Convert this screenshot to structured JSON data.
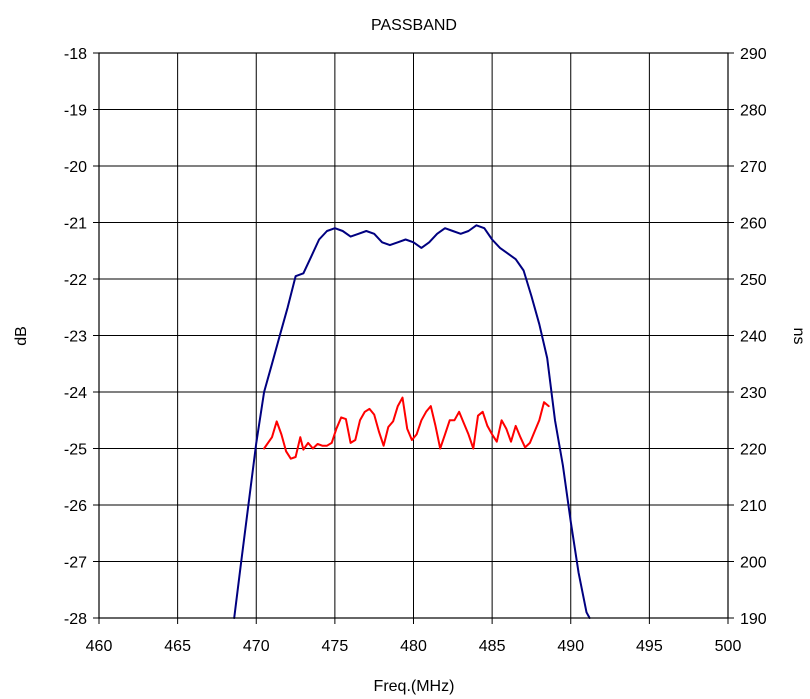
{
  "chart_data": {
    "type": "line",
    "title": "PASSBAND",
    "xlabel": "Freq.(MHz)",
    "ylabel_left": "dB",
    "ylabel_right": "ns",
    "xlim": [
      460,
      500
    ],
    "ylim_left": [
      -28,
      -18
    ],
    "ylim_right": [
      190,
      290
    ],
    "x_ticks": [
      "460",
      "465",
      "470",
      "475",
      "480",
      "485",
      "490",
      "495",
      "500"
    ],
    "y_ticks_left": [
      "-18",
      "-19",
      "-20",
      "-21",
      "-22",
      "-23",
      "-24",
      "-25",
      "-26",
      "-27",
      "-28"
    ],
    "y_ticks_right": [
      "290",
      "280",
      "270",
      "260",
      "250",
      "240",
      "230",
      "220",
      "210",
      "200",
      "190"
    ],
    "grid": true,
    "series": [
      {
        "axis": "left",
        "color": "#000080",
        "x": [
          468.6,
          469.0,
          469.5,
          470.0,
          470.5,
          471.0,
          471.5,
          472.0,
          472.5,
          473.0,
          473.5,
          474.0,
          474.5,
          475.0,
          475.5,
          476.0,
          476.5,
          477.0,
          477.5,
          478.0,
          478.5,
          479.0,
          479.5,
          480.0,
          480.5,
          481.0,
          481.5,
          482.0,
          482.5,
          483.0,
          483.5,
          484.0,
          484.5,
          485.0,
          485.5,
          486.0,
          486.5,
          487.0,
          487.5,
          488.0,
          488.5,
          489.0,
          489.5,
          490.0,
          490.5,
          491.0,
          491.2
        ],
        "values": [
          -28.0,
          -27.1,
          -26.0,
          -24.9,
          -24.0,
          -23.5,
          -23.0,
          -22.5,
          -21.95,
          -21.9,
          -21.6,
          -21.3,
          -21.15,
          -21.1,
          -21.15,
          -21.25,
          -21.2,
          -21.15,
          -21.2,
          -21.35,
          -21.4,
          -21.35,
          -21.3,
          -21.35,
          -21.45,
          -21.35,
          -21.2,
          -21.1,
          -21.15,
          -21.2,
          -21.15,
          -21.05,
          -21.1,
          -21.3,
          -21.45,
          -21.55,
          -21.65,
          -21.85,
          -22.3,
          -22.8,
          -23.4,
          -24.5,
          -25.3,
          -26.3,
          -27.2,
          -27.9,
          -28.0
        ]
      },
      {
        "axis": "right",
        "color": "#ff0000",
        "x": [
          470.5,
          471.0,
          471.3,
          471.6,
          471.9,
          472.2,
          472.5,
          472.8,
          473.0,
          473.3,
          473.6,
          473.9,
          474.2,
          474.5,
          474.8,
          475.1,
          475.4,
          475.7,
          476.0,
          476.3,
          476.6,
          476.9,
          477.2,
          477.5,
          477.8,
          478.1,
          478.4,
          478.7,
          479.0,
          479.3,
          479.6,
          479.9,
          480.2,
          480.5,
          480.8,
          481.1,
          481.4,
          481.7,
          482.0,
          482.3,
          482.6,
          482.9,
          483.2,
          483.5,
          483.8,
          484.1,
          484.4,
          484.7,
          485.0,
          485.3,
          485.6,
          485.9,
          486.2,
          486.5,
          486.8,
          487.1,
          487.4,
          487.7,
          488.0,
          488.3,
          488.6
        ],
        "values": [
          220.0,
          222.0,
          224.8,
          222.5,
          219.5,
          218.2,
          218.5,
          222.0,
          219.8,
          221.0,
          220.0,
          220.8,
          220.5,
          220.5,
          221.0,
          223.5,
          225.5,
          225.2,
          221.0,
          221.5,
          225.0,
          226.5,
          227.0,
          226.0,
          223.0,
          220.5,
          223.8,
          224.8,
          227.5,
          229.0,
          223.5,
          221.5,
          222.5,
          225.0,
          226.5,
          227.5,
          224.0,
          220.0,
          222.5,
          225.0,
          225.0,
          226.5,
          224.5,
          222.5,
          220.0,
          225.8,
          226.5,
          224.0,
          222.5,
          221.2,
          225.0,
          223.5,
          221.2,
          224.0,
          222.0,
          220.2,
          221.0,
          223.0,
          225.0,
          228.2,
          227.5
        ]
      }
    ]
  }
}
